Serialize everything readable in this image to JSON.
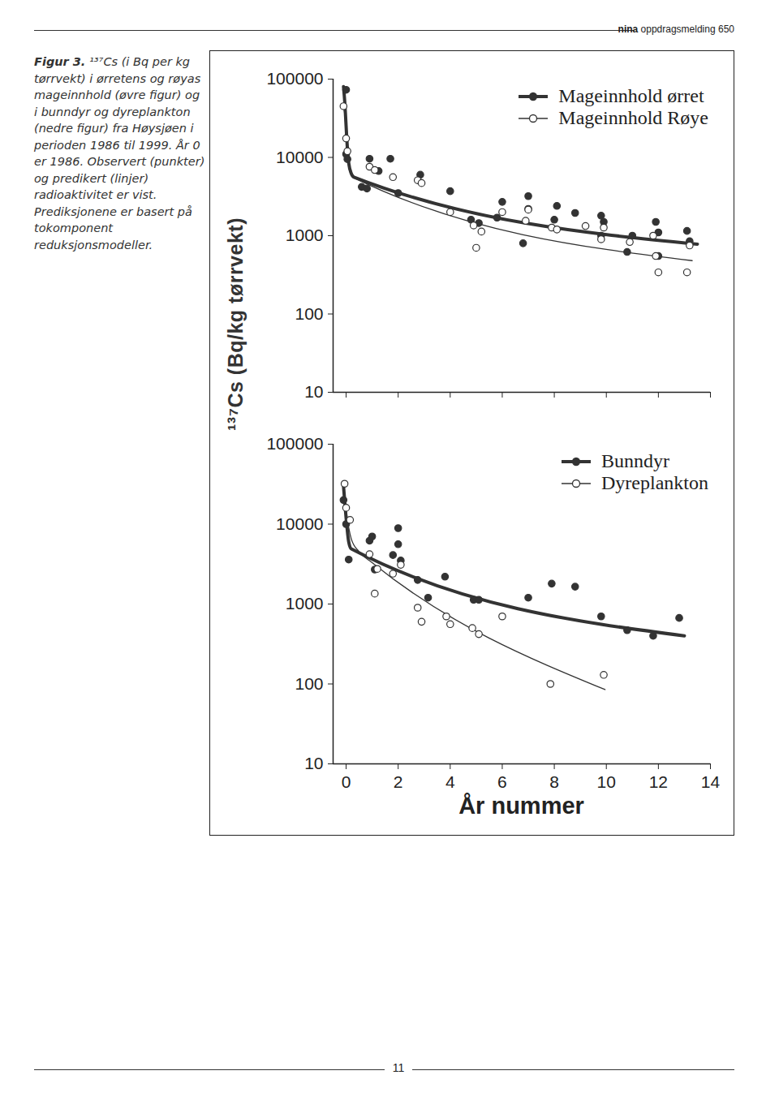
{
  "header": {
    "brand": "nina",
    "text": "oppdragsmelding 650"
  },
  "caption": {
    "label": "Figur 3.",
    "text": "¹³⁷Cs (i Bq per kg tørrvekt) i ørretens og røyas mageinnhold (øvre figur) og i bunndyr og dyreplankton (nedre figur) fra Høysjøen i perioden 1986 til 1999. År 0 er 1986. Observert (punkter) og predikert (linjer) radioaktivitet er vist. Prediksjonene er basert på tokomponent reduksjonsmodeller."
  },
  "page_number": "11",
  "chart_data": [
    {
      "type": "scatter",
      "ylabel": "¹³⁷Cs (Bq/kg tørrvekt)",
      "log": "y",
      "xlim": [
        -0.5,
        14
      ],
      "xticks": [
        0,
        2,
        4,
        6,
        8,
        10,
        12,
        14
      ],
      "ylim": [
        10,
        100000
      ],
      "yticks": [
        10,
        100,
        1000,
        10000,
        100000
      ],
      "tick_labels": "y",
      "legend": "top-right",
      "grid": false,
      "series": [
        {
          "name": "Mageinnhold ørret",
          "color": "#333333",
          "marker": "filled",
          "line_style": "bold",
          "x": [
            0,
            0,
            0.05,
            0.6,
            0.8,
            0.9,
            1.25,
            1.7,
            2,
            2.85,
            4,
            4.8,
            5.1,
            5.8,
            6,
            6.8,
            7,
            7,
            8.1,
            8,
            8.8,
            9.8,
            9.9,
            9.8,
            10.8,
            11,
            11.9,
            12,
            12,
            13.1,
            13.2
          ],
          "values": [
            73000,
            11000,
            9500,
            4200,
            4000,
            9600,
            6700,
            9600,
            3500,
            6000,
            3700,
            1600,
            1450,
            1700,
            2700,
            800,
            3200,
            2200,
            2400,
            1600,
            1950,
            1800,
            1500,
            1000,
            620,
            1000,
            1500,
            1100,
            550,
            1150,
            850
          ],
          "fit_x": [
            -0.1,
            -0.05,
            0,
            0.05,
            0.1,
            0.2,
            0.3,
            13.5
          ],
          "fit_values": [
            80000,
            50000,
            25000,
            13000,
            8500,
            6200,
            5600,
            780
          ]
        },
        {
          "name": "Mageinnhold Røye",
          "color": "#333333",
          "marker": "open",
          "line_style": "solid",
          "x": [
            -0.1,
            0,
            0.05,
            0.9,
            1.1,
            1.8,
            2.75,
            2.9,
            4,
            4.9,
            5.2,
            5,
            6,
            6.9,
            7,
            7.9,
            8.1,
            9.2,
            9.9,
            9.8,
            10.9,
            11.8,
            11.9,
            12,
            13.1,
            13.2
          ],
          "values": [
            45000,
            17500,
            12000,
            7600,
            6900,
            5600,
            5100,
            4700,
            2000,
            1350,
            1130,
            700,
            2000,
            1550,
            2150,
            1270,
            1200,
            1330,
            1270,
            900,
            830,
            1000,
            550,
            340,
            340,
            750
          ],
          "fit_x": [
            -0.1,
            -0.05,
            0,
            0.05,
            0.1,
            0.2,
            0.3,
            13.3
          ],
          "fit_values": [
            45000,
            35000,
            20000,
            11000,
            7500,
            6000,
            5500,
            480
          ]
        }
      ]
    },
    {
      "type": "scatter",
      "xlabel": "År nummer",
      "log": "y",
      "xlim": [
        -0.5,
        14
      ],
      "xticks": [
        0,
        2,
        4,
        6,
        8,
        10,
        12,
        14
      ],
      "ylim": [
        10,
        100000
      ],
      "yticks": [
        10,
        100,
        1000,
        10000,
        100000
      ],
      "legend": "top-right",
      "grid": false,
      "series": [
        {
          "name": "Bunndyr",
          "color": "#333333",
          "marker": "filled",
          "line_style": "bold",
          "x": [
            -0.1,
            0,
            0.1,
            0.9,
            1,
            2,
            2,
            1.1,
            1.8,
            2.1,
            2.75,
            3.15,
            3.8,
            4.9,
            5.1,
            7,
            7.9,
            8.8,
            9.8,
            10.8,
            11.8,
            12.8
          ],
          "values": [
            20000,
            10000,
            3600,
            6200,
            7000,
            8900,
            5600,
            2700,
            4100,
            3500,
            2000,
            1200,
            2200,
            1130,
            1130,
            1200,
            1800,
            1650,
            700,
            470,
            400,
            670
          ],
          "fit_x": [
            -0.1,
            0,
            0.1,
            0.2,
            13
          ],
          "fit_values": [
            30000,
            12000,
            6000,
            4900,
            400
          ]
        },
        {
          "name": "Dyreplankton",
          "color": "#333333",
          "marker": "open",
          "line_style": "solid",
          "x": [
            -0.06,
            0,
            0.15,
            0.9,
            1.2,
            1.1,
            1.8,
            2.1,
            2.75,
            2.9,
            3.85,
            4,
            4.85,
            5.1,
            6,
            7.85,
            9.9
          ],
          "values": [
            32000,
            16000,
            11300,
            4200,
            2750,
            1350,
            2400,
            3100,
            900,
            600,
            700,
            560,
            500,
            420,
            700,
            100,
            130
          ],
          "fit_x": [
            -0.1,
            0,
            0.2,
            0.5,
            1,
            9.95
          ],
          "fit_values": [
            30000,
            15000,
            6500,
            4500,
            3300,
            85
          ]
        }
      ]
    }
  ]
}
